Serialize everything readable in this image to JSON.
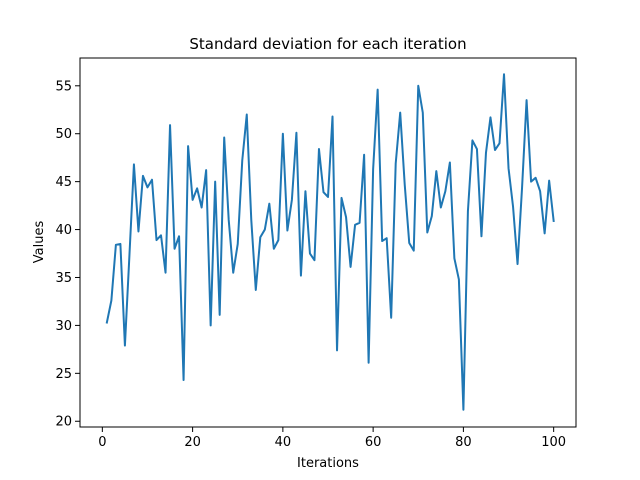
{
  "chart_data": {
    "type": "line",
    "title": "Standard deviation for each iteration",
    "xlabel": "Iterations",
    "ylabel": "Values",
    "xlim": [
      -4.95,
      104.95
    ],
    "ylim": [
      19.4,
      57.9
    ],
    "xticks": [
      0,
      20,
      40,
      60,
      80,
      100
    ],
    "yticks": [
      20,
      25,
      30,
      35,
      40,
      45,
      50,
      55
    ],
    "grid": false,
    "line_color": "#1f77b4",
    "series": [
      {
        "x": [
          1,
          2,
          3,
          4,
          5,
          6,
          7,
          8,
          9,
          10,
          11,
          12,
          13,
          14,
          15,
          16,
          17,
          18,
          19,
          20,
          21,
          22,
          23,
          24,
          25,
          26,
          27,
          28,
          29,
          30,
          31,
          32,
          33,
          34,
          35,
          36,
          37,
          38,
          39,
          40,
          41,
          42,
          43,
          44,
          45,
          46,
          47,
          48,
          49,
          50,
          51,
          52,
          53,
          54,
          55,
          56,
          57,
          58,
          59,
          60,
          61,
          62,
          63,
          64,
          65,
          66,
          67,
          68,
          69,
          70,
          71,
          72,
          73,
          74,
          75,
          76,
          77,
          78,
          79,
          80,
          81,
          82,
          83,
          84,
          85,
          86,
          87,
          88,
          89,
          90,
          91,
          92,
          93,
          94,
          95,
          96,
          97,
          98,
          99,
          100
        ],
        "values": [
          30.3,
          32.6,
          38.4,
          38.5,
          27.9,
          37.3,
          46.8,
          39.8,
          45.6,
          44.4,
          45.2,
          38.9,
          39.4,
          35.5,
          50.9,
          38.0,
          39.3,
          24.3,
          48.7,
          43.1,
          44.3,
          42.3,
          46.2,
          30.0,
          45.0,
          31.1,
          49.6,
          41.0,
          35.5,
          38.5,
          47.2,
          52.0,
          41.0,
          33.7,
          39.2,
          40.0,
          42.7,
          38.0,
          38.9,
          50.0,
          39.9,
          43.1,
          50.1,
          35.2,
          44.0,
          37.5,
          36.8,
          48.4,
          43.9,
          43.4,
          51.8,
          27.4,
          43.3,
          41.3,
          36.1,
          40.5,
          40.7,
          47.8,
          26.1,
          46.3,
          54.6,
          38.8,
          39.1,
          30.8,
          46.9,
          52.2,
          44.7,
          38.6,
          37.8,
          55.0,
          52.2,
          39.7,
          41.4,
          46.1,
          42.3,
          44.0,
          47.0,
          37.0,
          34.8,
          21.2,
          41.9,
          49.3,
          48.4,
          39.3,
          48.0,
          51.7,
          48.3,
          49.0,
          56.2,
          46.4,
          42.4,
          36.4,
          44.4,
          53.5,
          45.0,
          45.4,
          44.0,
          39.6,
          45.1,
          40.9
        ]
      }
    ]
  }
}
